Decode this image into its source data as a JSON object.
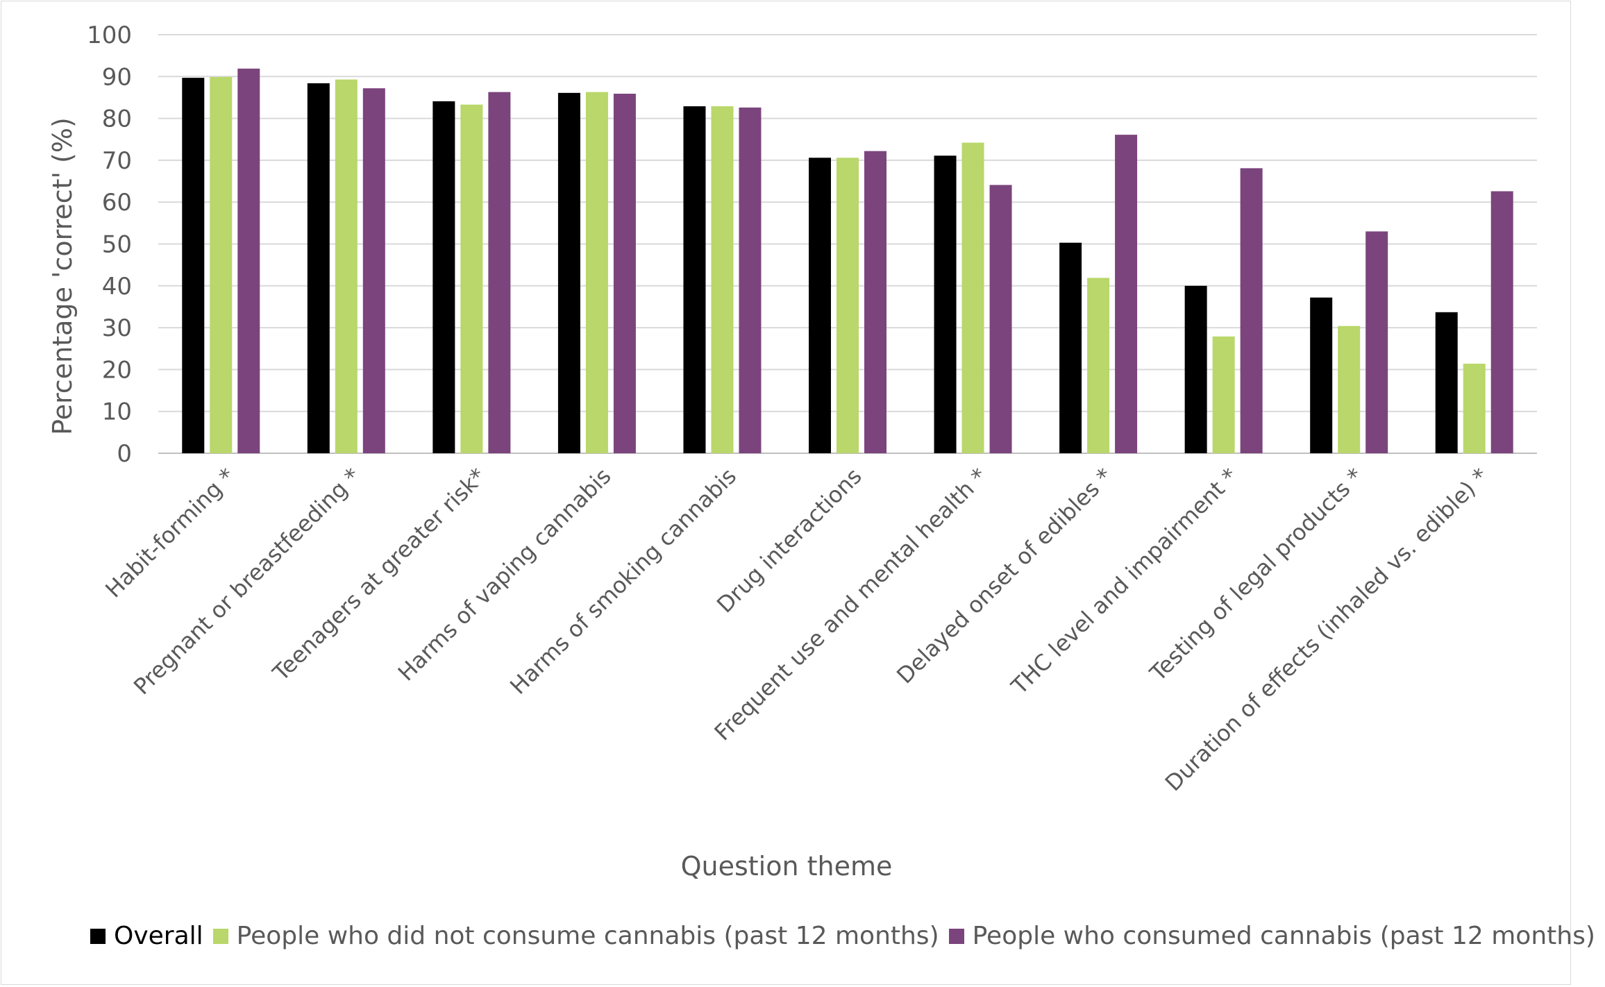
{
  "chart_data": {
    "type": "bar",
    "xlabel": "Question theme",
    "ylabel": "Percentage 'correct' (%)",
    "ylim": [
      0,
      100
    ],
    "yticks": [
      "0",
      "10",
      "20",
      "30",
      "40",
      "50",
      "60",
      "70",
      "80",
      "90",
      "100"
    ],
    "grid": true,
    "legend_position": "bottom",
    "categories": [
      "Habit-forming *",
      "Pregnant or breastfeeding *",
      "Teenagers at greater risk*",
      "Harms of vaping cannabis",
      "Harms of smoking cannabis",
      "Drug interactions",
      "Frequent use and mental health *",
      "Delayed onset of edibles *",
      "THC level and impairment *",
      "Testing of legal products *",
      "Duration of effects (inhaled vs. edible) *"
    ],
    "series": [
      {
        "name": "Overall",
        "color": "#000000",
        "values": [
          89.7,
          88.4,
          84.1,
          86.1,
          82.9,
          70.6,
          71.1,
          50.3,
          40.0,
          37.2,
          33.7
        ]
      },
      {
        "name": "People who did not consume cannabis (past 12 months)",
        "color": "#b9d76a",
        "values": [
          89.9,
          89.3,
          83.3,
          86.3,
          82.9,
          70.6,
          74.2,
          41.9,
          27.9,
          30.4,
          21.4
        ]
      },
      {
        "name": "People who consumed cannabis (past 12 months)",
        "color": "#7b447d",
        "values": [
          91.9,
          87.2,
          86.3,
          85.9,
          82.6,
          72.2,
          64.1,
          76.1,
          68.1,
          53.0,
          62.6
        ]
      }
    ]
  }
}
